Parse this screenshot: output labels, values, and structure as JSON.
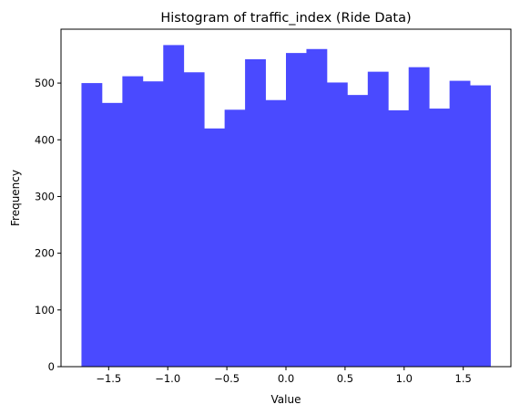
{
  "chart_data": {
    "type": "bar",
    "title": "Histogram of traffic_index (Ride Data)",
    "xlabel": "Value",
    "ylabel": "Frequency",
    "bin_edges": [
      -1.73,
      -1.557,
      -1.384,
      -1.211,
      -1.038,
      -0.865,
      -0.692,
      -0.519,
      -0.346,
      -0.173,
      0.0,
      0.173,
      0.346,
      0.519,
      0.692,
      0.865,
      1.038,
      1.211,
      1.384,
      1.557,
      1.73
    ],
    "values": [
      500,
      465,
      512,
      503,
      567,
      519,
      420,
      453,
      542,
      470,
      553,
      560,
      501,
      479,
      520,
      452,
      528,
      455,
      504,
      496
    ],
    "xlim": [
      -1.903,
      1.903
    ],
    "ylim": [
      0,
      595
    ],
    "xticks": [
      -1.5,
      -1.0,
      -0.5,
      0.0,
      0.5,
      1.0,
      1.5
    ],
    "xtick_labels": [
      "−1.5",
      "−1.0",
      "−0.5",
      "0.0",
      "0.5",
      "1.0",
      "1.5"
    ],
    "yticks": [
      0,
      100,
      200,
      300,
      400,
      500
    ],
    "ytick_labels": [
      "0",
      "100",
      "200",
      "300",
      "400",
      "500"
    ],
    "bar_color": "#4a4aff",
    "grid": false,
    "legend": false
  }
}
